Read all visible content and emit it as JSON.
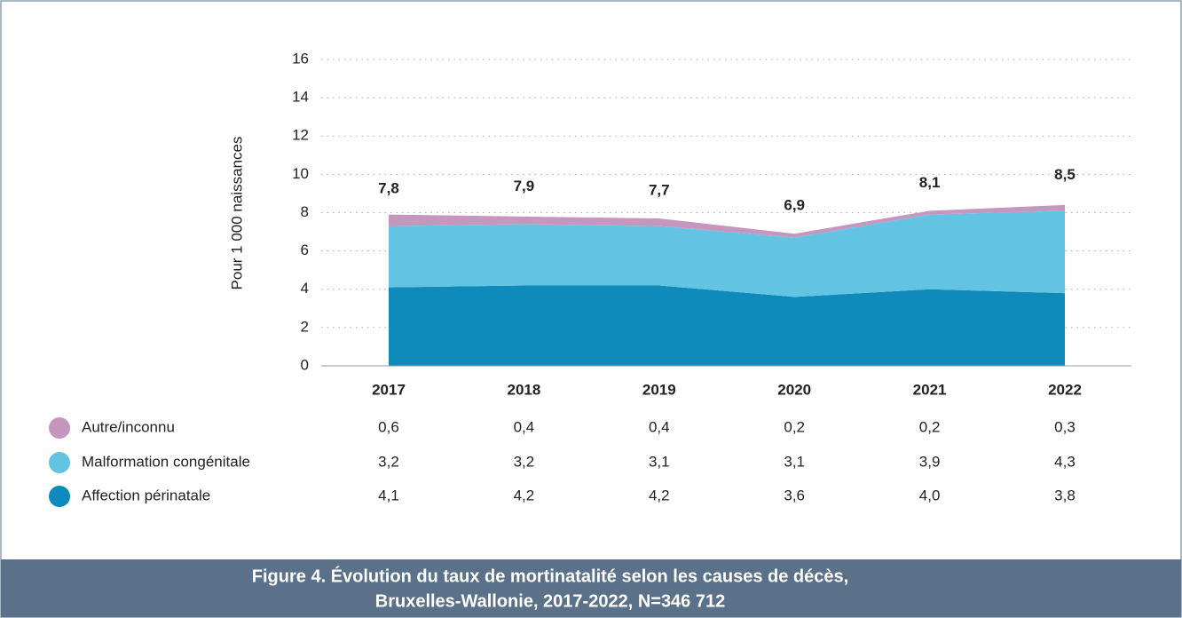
{
  "chart_data": {
    "type": "area",
    "stacked": true,
    "y_label": "Pour 1 000 naissances",
    "categories": [
      "2017",
      "2018",
      "2019",
      "2020",
      "2021",
      "2022"
    ],
    "series": [
      {
        "name": "Autre/inconnu",
        "color": "#c597be",
        "values": [
          0.6,
          0.4,
          0.4,
          0.2,
          0.2,
          0.3
        ],
        "value_labels": [
          "0,6",
          "0,4",
          "0,4",
          "0,2",
          "0,2",
          "0,3"
        ]
      },
      {
        "name": "Malformation congénitale",
        "color": "#62c4e2",
        "values": [
          3.2,
          3.2,
          3.1,
          3.1,
          3.9,
          4.3
        ],
        "value_labels": [
          "3,2",
          "3,2",
          "3,1",
          "3,1",
          "3,9",
          "4,3"
        ]
      },
      {
        "name": "Affection périnatale",
        "color": "#0e8bbb",
        "values": [
          4.1,
          4.2,
          4.2,
          3.6,
          4.0,
          3.8
        ],
        "value_labels": [
          "4,1",
          "4,2",
          "4,2",
          "3,6",
          "4,0",
          "3,8"
        ]
      }
    ],
    "totals": {
      "values": [
        7.8,
        7.9,
        7.7,
        6.9,
        8.1,
        8.5
      ],
      "value_labels": [
        "7,8",
        "7,9",
        "7,7",
        "6,9",
        "8,1",
        "8,5"
      ]
    },
    "ylim": [
      0,
      16
    ],
    "yticks": [
      0,
      2,
      4,
      6,
      8,
      10,
      12,
      14,
      16
    ],
    "grid": true,
    "caption": [
      "Figure 4. Évolution du taux de mortinatalité selon les causes de décès,",
      "Bruxelles-Wallonie, 2017-2022, N=346 712"
    ]
  }
}
